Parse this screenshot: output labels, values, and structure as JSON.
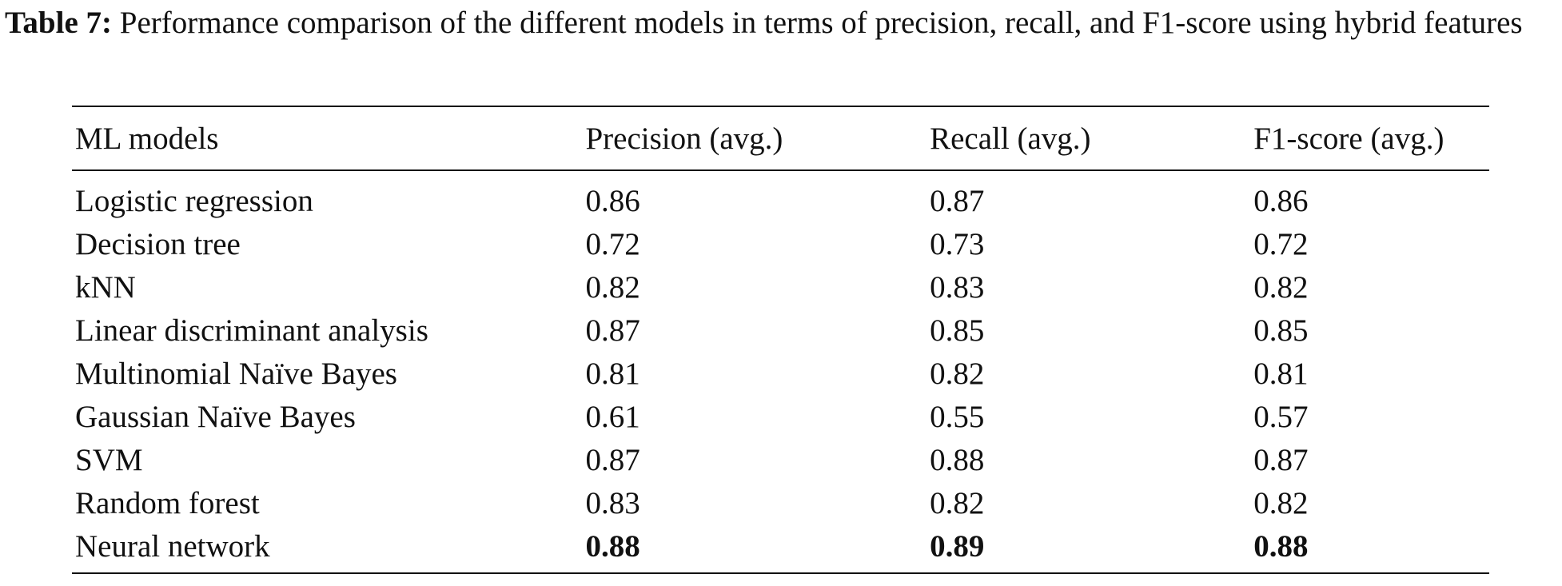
{
  "caption": {
    "label": "Table 7:",
    "text": " Performance comparison of the different models in terms of precision, recall, and F1-score using hybrid features"
  },
  "table": {
    "headers": [
      "ML models",
      "Precision (avg.)",
      "Recall (avg.)",
      "F1-score (avg.)"
    ],
    "rows": [
      {
        "model": "Logistic regression",
        "precision": "0.86",
        "recall": "0.87",
        "f1": "0.86"
      },
      {
        "model": "Decision tree",
        "precision": "0.72",
        "recall": "0.73",
        "f1": "0.72"
      },
      {
        "model": "kNN",
        "precision": "0.82",
        "recall": "0.83",
        "f1": "0.82"
      },
      {
        "model": "Linear discriminant analysis",
        "precision": "0.87",
        "recall": "0.85",
        "f1": "0.85"
      },
      {
        "model": "Multinomial Naïve Bayes",
        "precision": "0.81",
        "recall": "0.82",
        "f1": "0.81"
      },
      {
        "model": "Gaussian Naïve Bayes",
        "precision": "0.61",
        "recall": "0.55",
        "f1": "0.57"
      },
      {
        "model": "SVM",
        "precision": "0.87",
        "recall": "0.88",
        "f1": "0.87"
      },
      {
        "model": "Random forest",
        "precision": "0.83",
        "recall": "0.82",
        "f1": "0.82"
      },
      {
        "model": "Neural network",
        "precision": "0.88",
        "recall": "0.89",
        "f1": "0.88",
        "bold": true
      }
    ]
  }
}
